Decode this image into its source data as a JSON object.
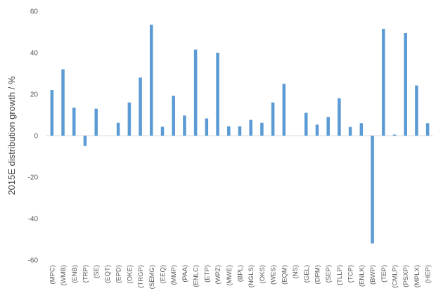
{
  "chart_data": {
    "type": "bar",
    "title": "",
    "xlabel": "",
    "ylabel": "2015E distribution growth / %",
    "ylim": [
      -60,
      60
    ],
    "yticks": [
      60,
      40,
      20,
      0,
      -20,
      -40,
      -60
    ],
    "grid": false,
    "legend": "none",
    "bar_color": "#5b9bd5",
    "categories": [
      "(MPC)",
      "(WMB)",
      "(ENB)",
      "(TRP)",
      "(SE)",
      "(EQT)",
      "(EPD)",
      "(OKE)",
      "(TRGP)",
      "(SEMG)",
      "(EEQ)",
      "(MMP)",
      "(PAA)",
      "(ENLC)",
      "(ETP)",
      "(WPZ)",
      "(MWE)",
      "(BPL)",
      "(NGLS)",
      "(OKS)",
      "(WES)",
      "(EQM)",
      "(NS)",
      "(GEL)",
      "(DPM)",
      "(SEP)",
      "(TLLP)",
      "(TCP)",
      "(ENLK)",
      "(BWP)",
      "(TEP)",
      "(CMLP)",
      "(PSXP)",
      "(MPLX)",
      "(HEP)"
    ],
    "values": [
      22,
      32,
      13.5,
      -5,
      13,
      0,
      6.2,
      16,
      28,
      53.5,
      4.3,
      19.2,
      9.7,
      41.5,
      8.3,
      40,
      4.5,
      4.5,
      7.6,
      6.2,
      16,
      25,
      0,
      11,
      5.3,
      9,
      18,
      4.2,
      6,
      -52,
      51.5,
      0.5,
      49.5,
      24.2,
      6
    ]
  }
}
